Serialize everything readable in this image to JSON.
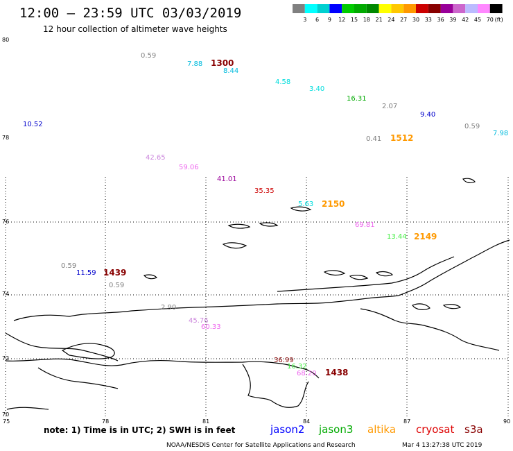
{
  "header": {
    "title": "12:00 — 23:59 UTC 03/03/2019",
    "subtitle": "12 hour collection of altimeter wave heights"
  },
  "color_scale": {
    "colors": [
      "#808080",
      "#00ffff",
      "#00d0d0",
      "#0000ff",
      "#00cc00",
      "#00aa00",
      "#008800",
      "#ffff00",
      "#ffc800",
      "#ff9900",
      "#cc0000",
      "#880000",
      "#990099",
      "#cc66cc",
      "#bbbbff",
      "#ff88ff",
      "#000000"
    ],
    "labels": [
      "3",
      "6",
      "9",
      "12",
      "15",
      "18",
      "21",
      "24",
      "27",
      "30",
      "33",
      "36",
      "39",
      "42",
      "45",
      "70",
      "(ft)"
    ]
  },
  "axes": {
    "lon_labels": [
      "75",
      "78",
      "81",
      "84",
      "87",
      "90"
    ],
    "lat_labels": [
      "80",
      "78",
      "76",
      "74",
      "72",
      "70"
    ]
  },
  "observations": [
    {
      "text": "0.59",
      "color": "#808080"
    },
    {
      "text": "7.88",
      "color": "#00bbdd"
    },
    {
      "text": "8.44",
      "color": "#00bbdd"
    },
    {
      "text": "4.58",
      "color": "#00dddd"
    },
    {
      "text": "3.40",
      "color": "#00dddd"
    },
    {
      "text": "16.31",
      "color": "#00aa00"
    },
    {
      "text": "2.07",
      "color": "#808080"
    },
    {
      "text": "9.40",
      "color": "#0000cc"
    },
    {
      "text": "0.59",
      "color": "#808080"
    },
    {
      "text": "7.98",
      "color": "#00bbdd"
    },
    {
      "text": "10.52",
      "color": "#0000cc"
    },
    {
      "text": "0.41",
      "color": "#808080"
    },
    {
      "text": "42.65",
      "color": "#cc88dd"
    },
    {
      "text": "59.06",
      "color": "#ee66ee"
    },
    {
      "text": "41.01",
      "color": "#990099"
    },
    {
      "text": "35.35",
      "color": "#cc0000"
    },
    {
      "text": "5.63",
      "color": "#00dddd"
    },
    {
      "text": "69.81",
      "color": "#ee66ee"
    },
    {
      "text": "13.44",
      "color": "#44ee44"
    },
    {
      "text": "0.59",
      "color": "#808080"
    },
    {
      "text": "11.59",
      "color": "#0000cc"
    },
    {
      "text": "0.59",
      "color": "#808080"
    },
    {
      "text": "2.90",
      "color": "#808080"
    },
    {
      "text": "45.76",
      "color": "#cc88dd"
    },
    {
      "text": "60.33",
      "color": "#ee66ee"
    },
    {
      "text": "36.99",
      "color": "#880000"
    },
    {
      "text": "16.32",
      "color": "#44ee44"
    },
    {
      "text": "68.20",
      "color": "#ee66ee"
    }
  ],
  "time_labels": [
    {
      "text": "1300",
      "color": "#880000"
    },
    {
      "text": "1512",
      "color": "#ff9900"
    },
    {
      "text": "2150",
      "color": "#ff9900"
    },
    {
      "text": "2149",
      "color": "#ff9900"
    },
    {
      "text": "1439",
      "color": "#880000"
    },
    {
      "text": "1438",
      "color": "#880000"
    }
  ],
  "footer": {
    "note": "note: 1) Time is in UTC; 2) SWH is in feet",
    "satellites": [
      {
        "name": "jason2",
        "color": "#0000ff"
      },
      {
        "name": "jason3",
        "color": "#00aa00"
      },
      {
        "name": "altika",
        "color": "#ff9900"
      },
      {
        "name": "cryosat",
        "color": "#dd0000"
      },
      {
        "name": "s3a",
        "color": "#880000"
      }
    ],
    "credit": "NOAA/NESDIS Center for Satellite Applications and Research",
    "timestamp": "Mar  4 13:27:38 UTC 2019"
  }
}
